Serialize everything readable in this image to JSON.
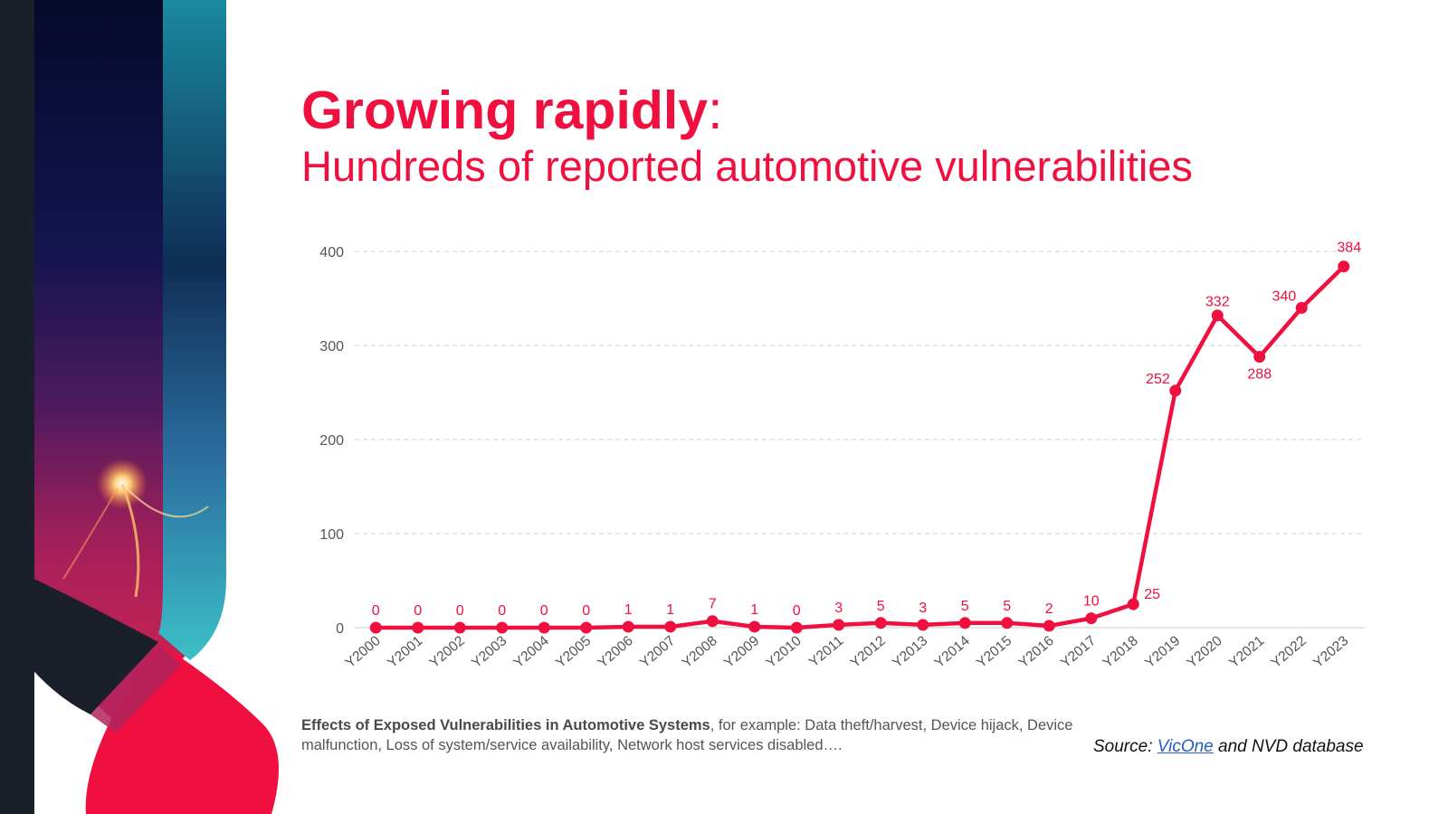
{
  "title": {
    "strong": "Growing rapidly",
    "colon": ":",
    "subtitle": "Hundreds of reported automotive vulnerabilities"
  },
  "colors": {
    "accent": "#f0103f",
    "grid": "#cfcfcf",
    "tick_text": "#555555"
  },
  "chart_data": {
    "type": "line",
    "categories": [
      "Y2000",
      "Y2001",
      "Y2002",
      "Y2003",
      "Y2004",
      "Y2005",
      "Y2006",
      "Y2007",
      "Y2008",
      "Y2009",
      "Y2010",
      "Y2011",
      "Y2012",
      "Y2013",
      "Y2014",
      "Y2015",
      "Y2016",
      "Y2017",
      "Y2018",
      "Y2019",
      "Y2020",
      "Y2021",
      "Y2022",
      "Y2023"
    ],
    "series": [
      {
        "values": [
          0,
          0,
          0,
          0,
          0,
          0,
          1,
          1,
          7,
          1,
          0,
          3,
          5,
          3,
          5,
          5,
          2,
          10,
          25,
          252,
          332,
          288,
          340,
          384
        ]
      }
    ],
    "ylim": [
      0,
      400
    ],
    "yticks": [
      0,
      100,
      200,
      300,
      400
    ],
    "grid": true,
    "legend": "none",
    "data_labels": true
  },
  "footnote": {
    "bold": "Effects of Exposed Vulnerabilities in Automotive Systems",
    "text": ", for example: Data theft/harvest, Device hijack, Device malfunction, Loss of system/service availability, Network host services disabled…."
  },
  "source": {
    "prefix": "Source: ",
    "link": "VicOne",
    "suffix": " and NVD database"
  }
}
